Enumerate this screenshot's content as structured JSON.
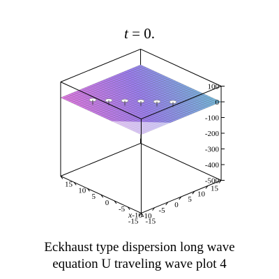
{
  "chart_data": {
    "type": "surface3d",
    "title": {
      "var": "t",
      "rest": " = 0."
    },
    "caption": [
      "Eckhaust type dispersion long wave",
      "equation U traveling wave plot 4"
    ],
    "xlabel": "x",
    "ylabel": "",
    "zlabel": "",
    "x_range": [
      -15,
      15
    ],
    "y_range": [
      -15,
      15
    ],
    "z_range": [
      -500,
      100
    ],
    "x_ticks": [
      -15,
      -10,
      -5,
      0,
      5,
      10,
      15
    ],
    "y_ticks": [
      -15,
      -10,
      -5,
      0,
      5,
      10,
      15
    ],
    "z_ticks": [
      100,
      0,
      -100,
      -200,
      -300,
      -400,
      -500
    ],
    "surface_level": 0,
    "surface_colors": [
      "#f07ae0",
      "#9c7ef0",
      "#6cc8d6"
    ],
    "grid": true,
    "box": true
  }
}
